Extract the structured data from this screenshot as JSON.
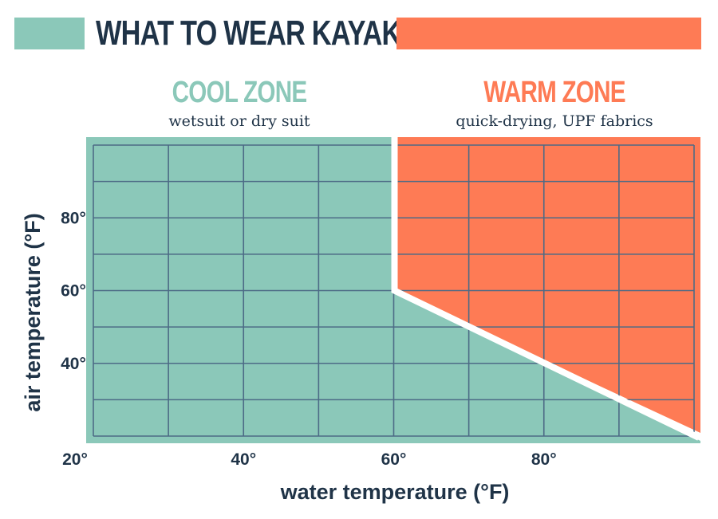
{
  "colors": {
    "cool": "#8bc8b9",
    "warm": "#fe7b55",
    "grid": "#4d6b86",
    "text": "#1f3347",
    "divider": "#ffffff"
  },
  "chart_data": {
    "type": "area",
    "title": "WHAT TO WEAR KAYAKING",
    "xlabel": "water temperature (°F)",
    "ylabel": "air temperature (°F)",
    "xlim": [
      20,
      100
    ],
    "ylim": [
      20,
      100
    ],
    "x_ticks": [
      {
        "value": 20,
        "label": "20°"
      },
      {
        "value": 40,
        "label": "40°"
      },
      {
        "value": 60,
        "label": "60°"
      },
      {
        "value": 80,
        "label": "80°"
      }
    ],
    "y_ticks": [
      {
        "value": 40,
        "label": "40°"
      },
      {
        "value": 60,
        "label": "60°"
      },
      {
        "value": 80,
        "label": "80°"
      }
    ],
    "grid": true,
    "grid_step": 10,
    "zones": [
      {
        "name": "COOL ZONE",
        "description": "wetsuit or dry suit",
        "color": "#8bc8b9"
      },
      {
        "name": "WARM ZONE",
        "description": "quick-drying, UPF fabrics",
        "color": "#fe7b55"
      }
    ],
    "boundary": [
      {
        "x": 60,
        "y": 100
      },
      {
        "x": 60,
        "y": 60
      },
      {
        "x": 100,
        "y": 20
      }
    ]
  }
}
